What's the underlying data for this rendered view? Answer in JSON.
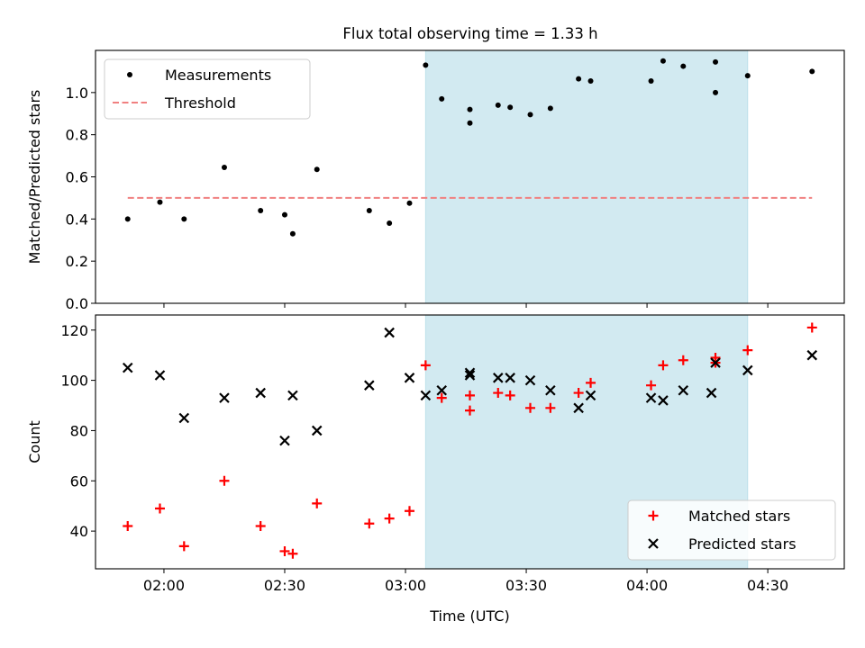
{
  "figure": {
    "title": "Flux total observing time = 1.33 h"
  },
  "chart_data": [
    {
      "type": "scatter",
      "title": "Flux total observing time = 1.33 h",
      "xlabel": "",
      "ylabel": "Matched/Predicted stars",
      "ylim": [
        0,
        1.2
      ],
      "yticks": [
        0.0,
        0.2,
        0.4,
        0.6,
        0.8,
        1.0
      ],
      "ytick_labels": [
        "0.0",
        "0.2",
        "0.4",
        "0.6",
        "0.8",
        "1.0"
      ],
      "xlim": [
        "01:43",
        "04:49"
      ],
      "xticks": [
        "02:00",
        "02:30",
        "03:00",
        "03:30",
        "04:00",
        "04:30"
      ],
      "show_xtick_labels": false,
      "grid": false,
      "legend_position": "top-left",
      "shaded_region": {
        "x_start": "03:05",
        "x_end": "04:25",
        "color": "#add8e6"
      },
      "series": [
        {
          "name": "Measurements",
          "kind": "dots",
          "color": "#000000",
          "points": [
            [
              "01:51",
              0.4
            ],
            [
              "01:59",
              0.48
            ],
            [
              "02:05",
              0.4
            ],
            [
              "02:15",
              0.645
            ],
            [
              "02:24",
              0.44
            ],
            [
              "02:30",
              0.42
            ],
            [
              "02:32",
              0.33
            ],
            [
              "02:38",
              0.635
            ],
            [
              "02:51",
              0.44
            ],
            [
              "02:56",
              0.38
            ],
            [
              "03:01",
              0.475
            ],
            [
              "03:05",
              1.13
            ],
            [
              "03:09",
              0.97
            ],
            [
              "03:16",
              0.855
            ],
            [
              "03:16",
              0.92
            ],
            [
              "03:23",
              0.94
            ],
            [
              "03:26",
              0.93
            ],
            [
              "03:31",
              0.895
            ],
            [
              "03:36",
              0.925
            ],
            [
              "03:43",
              1.065
            ],
            [
              "03:46",
              1.055
            ],
            [
              "04:01",
              1.055
            ],
            [
              "04:04",
              1.15
            ],
            [
              "04:09",
              1.125
            ],
            [
              "04:17",
              1.145
            ],
            [
              "04:17",
              1.0
            ],
            [
              "04:25",
              1.08
            ],
            [
              "04:41",
              1.1
            ]
          ]
        },
        {
          "name": "Threshold",
          "kind": "dashed-line",
          "color": "#f08080",
          "points": [
            [
              "01:51",
              0.5
            ],
            [
              "04:41",
              0.5
            ]
          ]
        }
      ]
    },
    {
      "type": "scatter",
      "title": "",
      "xlabel": "Time (UTC)",
      "ylabel": "Count",
      "ylim": [
        25,
        126
      ],
      "yticks": [
        40,
        60,
        80,
        100,
        120
      ],
      "ytick_labels": [
        "40",
        "60",
        "80",
        "100",
        "120"
      ],
      "xlim": [
        "01:43",
        "04:49"
      ],
      "xticks": [
        "02:00",
        "02:30",
        "03:00",
        "03:30",
        "04:00",
        "04:30"
      ],
      "xtick_labels": [
        "02:00",
        "02:30",
        "03:00",
        "03:30",
        "04:00",
        "04:30"
      ],
      "grid": false,
      "legend_position": "bottom-right",
      "shaded_region": {
        "x_start": "03:05",
        "x_end": "04:25",
        "color": "#add8e6"
      },
      "series": [
        {
          "name": "Matched stars",
          "kind": "plus",
          "color": "#ff0000",
          "points": [
            [
              "01:51",
              42
            ],
            [
              "01:59",
              49
            ],
            [
              "02:05",
              34
            ],
            [
              "02:15",
              60
            ],
            [
              "02:24",
              42
            ],
            [
              "02:30",
              32
            ],
            [
              "02:32",
              31
            ],
            [
              "02:38",
              51
            ],
            [
              "02:51",
              43
            ],
            [
              "02:56",
              45
            ],
            [
              "03:01",
              48
            ],
            [
              "03:05",
              106
            ],
            [
              "03:09",
              93
            ],
            [
              "03:16",
              88
            ],
            [
              "03:16",
              94
            ],
            [
              "03:23",
              95
            ],
            [
              "03:26",
              94
            ],
            [
              "03:31",
              89
            ],
            [
              "03:36",
              89
            ],
            [
              "03:43",
              95
            ],
            [
              "03:46",
              99
            ],
            [
              "04:01",
              98
            ],
            [
              "04:04",
              106
            ],
            [
              "04:09",
              108
            ],
            [
              "04:17",
              109
            ],
            [
              "04:17",
              107
            ],
            [
              "04:25",
              112
            ],
            [
              "04:41",
              121
            ]
          ]
        },
        {
          "name": "Predicted stars",
          "kind": "x",
          "color": "#000000",
          "points": [
            [
              "01:51",
              105
            ],
            [
              "01:59",
              102
            ],
            [
              "02:05",
              85
            ],
            [
              "02:15",
              93
            ],
            [
              "02:24",
              95
            ],
            [
              "02:30",
              76
            ],
            [
              "02:32",
              94
            ],
            [
              "02:38",
              80
            ],
            [
              "02:51",
              98
            ],
            [
              "02:56",
              119
            ],
            [
              "03:01",
              101
            ],
            [
              "03:05",
              94
            ],
            [
              "03:09",
              96
            ],
            [
              "03:16",
              103
            ],
            [
              "03:16",
              102
            ],
            [
              "03:23",
              101
            ],
            [
              "03:26",
              101
            ],
            [
              "03:31",
              100
            ],
            [
              "03:36",
              96
            ],
            [
              "03:43",
              89
            ],
            [
              "03:46",
              94
            ],
            [
              "04:01",
              93
            ],
            [
              "04:04",
              92
            ],
            [
              "04:09",
              96
            ],
            [
              "04:16",
              95
            ],
            [
              "04:17",
              107
            ],
            [
              "04:25",
              104
            ],
            [
              "04:41",
              110
            ]
          ]
        }
      ]
    }
  ]
}
